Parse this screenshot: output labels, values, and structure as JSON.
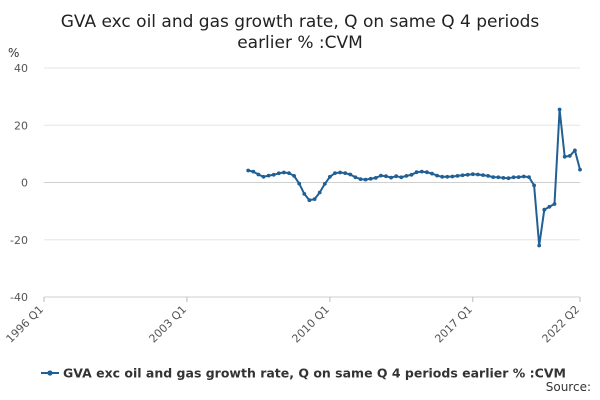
{
  "chart_data": {
    "type": "line",
    "title": "GVA exc oil and gas growth rate, Q on same Q 4 periods earlier % :CVM",
    "title_lines": [
      "GVA exc oil and gas growth rate, Q on same Q 4 periods",
      "earlier % :CVM"
    ],
    "y_unit": "%",
    "ylim": [
      -40,
      40
    ],
    "y_ticks": [
      40,
      20,
      0,
      -20,
      -40
    ],
    "y_tick_labels": [
      "40",
      "20",
      "0",
      "-20",
      "-40"
    ],
    "xlim": [
      "1996 Q1",
      "2022 Q2"
    ],
    "x_ticks": [
      "1996 Q1",
      "2003 Q1",
      "2010 Q1",
      "2017 Q1",
      "2022 Q2"
    ],
    "grid": "horizontal",
    "legend_position": "bottom",
    "color": "#206095",
    "series": [
      {
        "name": "GVA exc oil and gas growth rate, Q on same Q 4 periods earlier % :CVM",
        "x": [
          "2006 Q1",
          "2006 Q2",
          "2006 Q3",
          "2006 Q4",
          "2007 Q1",
          "2007 Q2",
          "2007 Q3",
          "2007 Q4",
          "2008 Q1",
          "2008 Q2",
          "2008 Q3",
          "2008 Q4",
          "2009 Q1",
          "2009 Q2",
          "2009 Q3",
          "2009 Q4",
          "2010 Q1",
          "2010 Q2",
          "2010 Q3",
          "2010 Q4",
          "2011 Q1",
          "2011 Q2",
          "2011 Q3",
          "2011 Q4",
          "2012 Q1",
          "2012 Q2",
          "2012 Q3",
          "2012 Q4",
          "2013 Q1",
          "2013 Q2",
          "2013 Q3",
          "2013 Q4",
          "2014 Q1",
          "2014 Q2",
          "2014 Q3",
          "2014 Q4",
          "2015 Q1",
          "2015 Q2",
          "2015 Q3",
          "2015 Q4",
          "2016 Q1",
          "2016 Q2",
          "2016 Q3",
          "2016 Q4",
          "2017 Q1",
          "2017 Q2",
          "2017 Q3",
          "2017 Q4",
          "2018 Q1",
          "2018 Q2",
          "2018 Q3",
          "2018 Q4",
          "2019 Q1",
          "2019 Q2",
          "2019 Q3",
          "2019 Q4",
          "2020 Q1",
          "2020 Q2",
          "2020 Q3",
          "2020 Q4",
          "2021 Q1",
          "2021 Q2",
          "2021 Q3",
          "2021 Q4",
          "2022 Q1",
          "2022 Q2"
        ],
        "values": [
          4.2,
          3.8,
          2.8,
          2.0,
          2.4,
          2.7,
          3.2,
          3.5,
          3.3,
          2.3,
          -0.4,
          -4.0,
          -6.2,
          -5.8,
          -3.5,
          -0.5,
          2.0,
          3.3,
          3.5,
          3.3,
          2.8,
          1.8,
          1.2,
          1.0,
          1.3,
          1.6,
          2.4,
          2.2,
          1.7,
          2.2,
          1.8,
          2.3,
          2.7,
          3.6,
          3.8,
          3.6,
          3.1,
          2.4,
          2.0,
          2.0,
          2.1,
          2.3,
          2.5,
          2.7,
          2.9,
          2.8,
          2.6,
          2.3,
          1.9,
          1.8,
          1.6,
          1.5,
          1.8,
          1.9,
          2.1,
          1.9,
          -1.0,
          -22.0,
          -9.5,
          -8.5,
          -7.5,
          25.5,
          9.0,
          9.3,
          11.2,
          4.5
        ]
      }
    ],
    "legend_label": "GVA exc oil and gas growth rate, Q on same Q 4 periods earlier % :CVM",
    "source_label": "Source:"
  }
}
